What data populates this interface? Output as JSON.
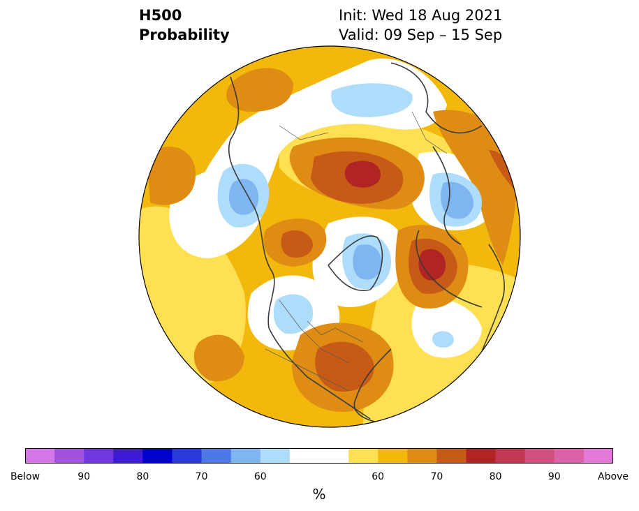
{
  "header": {
    "title_line1": "H500",
    "title_line2": "Probability",
    "init_text": "Init: Wed 18 Aug 2021",
    "valid_text": "Valid: 09 Sep – 15 Sep"
  },
  "colors": {
    "below": [
      "#d478e8",
      "#a152e0",
      "#7138e0",
      "#3e19d6",
      "#0000cf",
      "#2a3ad8",
      "#4e78e8",
      "#7fb6f2",
      "#aedcfb"
    ],
    "neutral": "#ffffff",
    "above": [
      "#ffe052",
      "#f2b90c",
      "#de8c14",
      "#c75a16",
      "#b02424",
      "#c23852",
      "#d15080",
      "#db62a8",
      "#e37ad8"
    ]
  },
  "colorbar": {
    "tick_labels": [
      "Below",
      "90",
      "80",
      "70",
      "60",
      "60",
      "70",
      "80",
      "90",
      "Above"
    ],
    "unit": "%"
  }
}
